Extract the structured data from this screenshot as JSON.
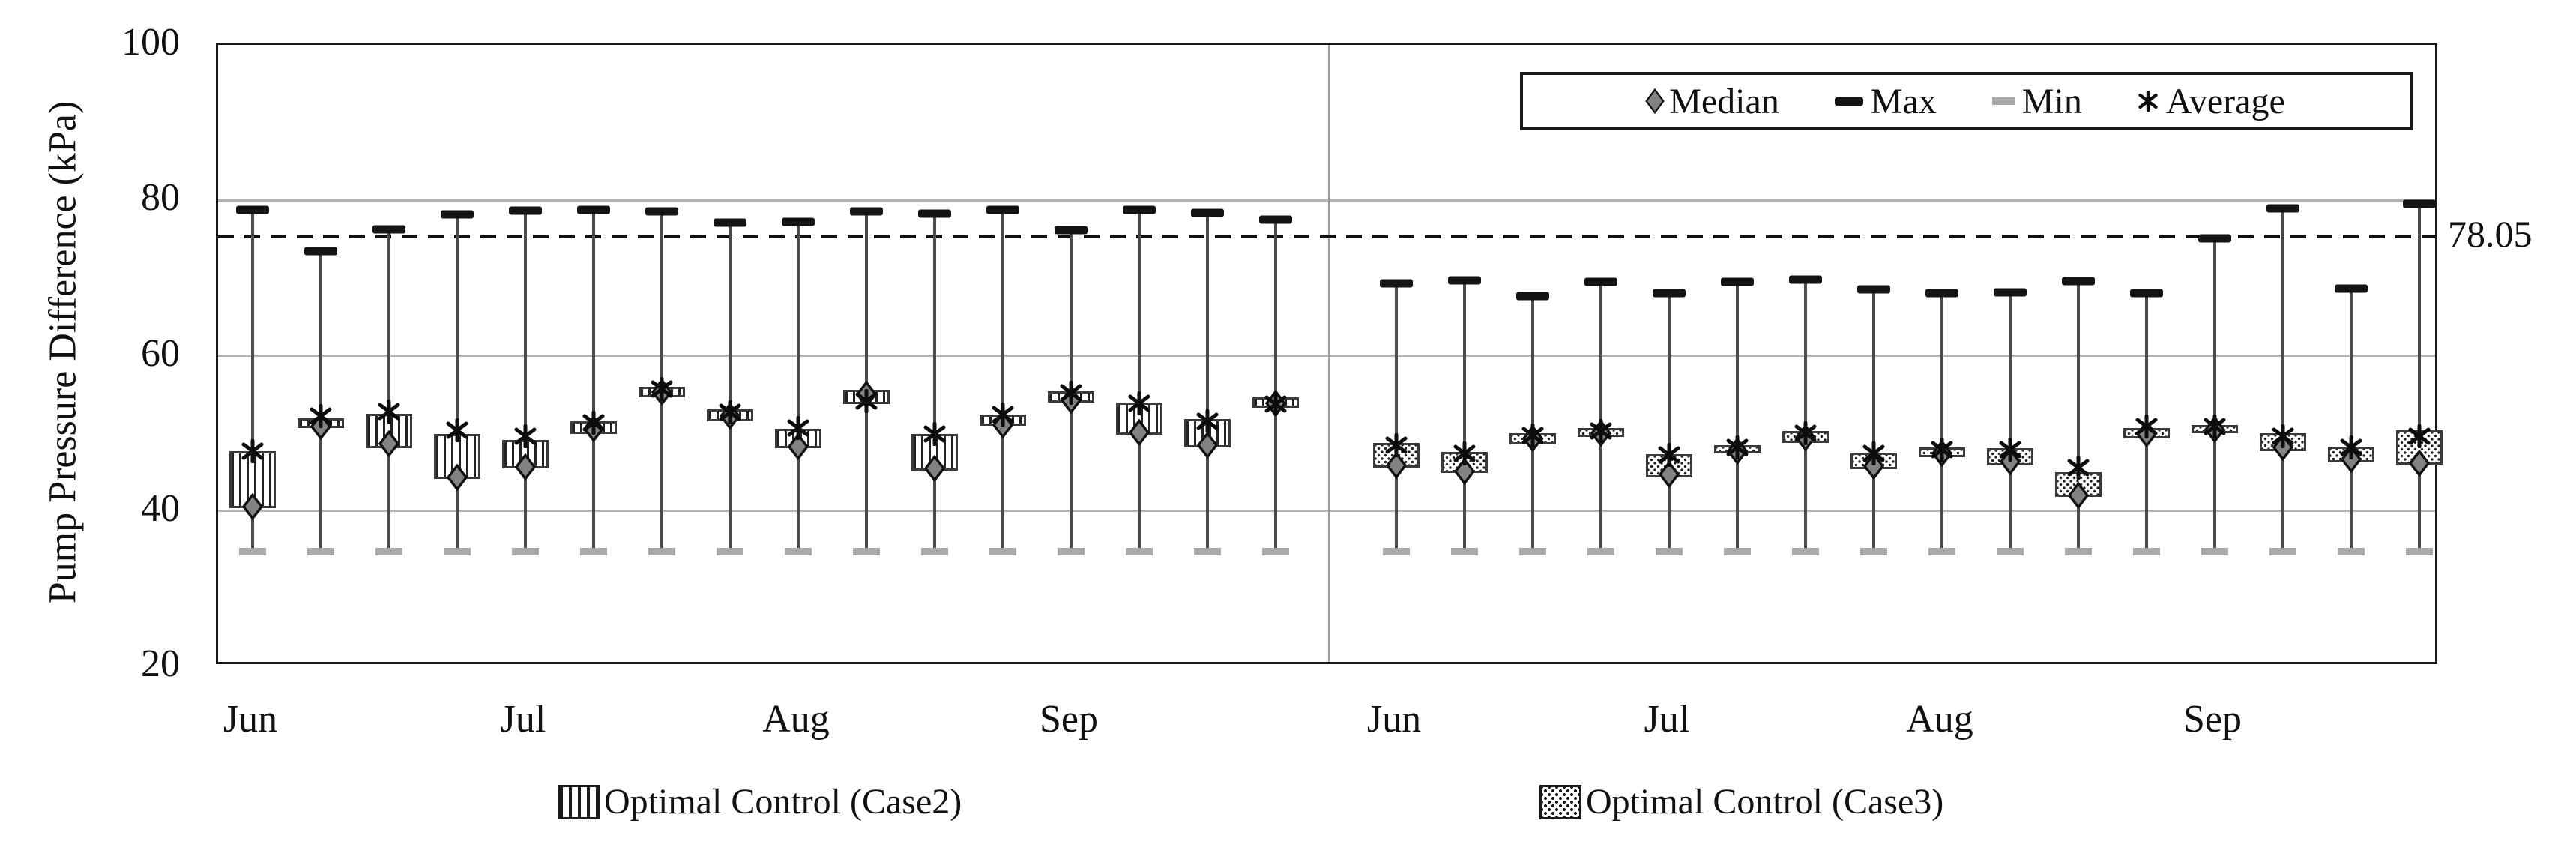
{
  "y_axis": {
    "label": "Pump Pressure Difference (kPa)",
    "min": 20,
    "max": 100,
    "tick_labels": [
      "100",
      "80",
      "60",
      "40",
      "20"
    ],
    "tick_values": [
      100,
      80,
      60,
      40,
      20
    ],
    "gridline_values": [
      40,
      60,
      80
    ]
  },
  "x_axis": {
    "month_labels": [
      "Jun",
      "Jul",
      "Aug",
      "Sep"
    ],
    "weeks_per_month": 4
  },
  "legend": {
    "items": [
      {
        "label": "Median",
        "marker": "diamond"
      },
      {
        "label": "Max",
        "marker": "black-dash"
      },
      {
        "label": "Min",
        "marker": "gray-dash"
      },
      {
        "label": "Average",
        "marker": "asterisk"
      }
    ]
  },
  "reference_line": {
    "label": "78.05",
    "value": 78.05,
    "y_axis_position": 75.35,
    "style": "dashed"
  },
  "series_legend": [
    {
      "label": "Optimal Control (Case2)",
      "pattern": "vertical-stripes"
    },
    {
      "label": "Optimal Control (Case3)",
      "pattern": "dots"
    }
  ],
  "colors": {
    "max_cap": "#141414",
    "min_cap": "#a9a9a9",
    "whisker": "#4a4a4a",
    "box_border": "#3a3a3a",
    "median_fill": "#828282",
    "grid": "#b3b3b3",
    "reference": "#111111",
    "plot_border": "#1a1a1a"
  },
  "chart_data": {
    "type": "box-whisker",
    "title": "",
    "xlabel": "",
    "ylabel": "Pump Pressure Difference (kPa)",
    "ylim": [
      20,
      100
    ],
    "grid": "horizontal",
    "legend_position": "top-right",
    "months": [
      "Jun",
      "Jul",
      "Aug",
      "Sep"
    ],
    "series": [
      {
        "name": "Optimal Control (Case2)",
        "pattern": "vertical-stripes",
        "boxes": [
          {
            "month": "Jun",
            "week": 1,
            "min": 34.8,
            "q1": 40.4,
            "median": 40.6,
            "q3": 47.7,
            "max": 78.8,
            "average": 47.7
          },
          {
            "month": "Jun",
            "week": 2,
            "min": 34.8,
            "q1": 50.7,
            "median": 50.9,
            "q3": 51.9,
            "max": 73.5,
            "average": 52.2
          },
          {
            "month": "Jun",
            "week": 3,
            "min": 34.8,
            "q1": 48.1,
            "median": 48.7,
            "q3": 52.5,
            "max": 76.3,
            "average": 52.8
          },
          {
            "month": "Jun",
            "week": 4,
            "min": 34.8,
            "q1": 44.1,
            "median": 44.3,
            "q3": 49.9,
            "max": 78.2,
            "average": 50.4
          },
          {
            "month": "Jul",
            "week": 1,
            "min": 34.8,
            "q1": 45.5,
            "median": 45.7,
            "q3": 49.1,
            "max": 78.7,
            "average": 49.6
          },
          {
            "month": "Jul",
            "week": 2,
            "min": 34.8,
            "q1": 49.9,
            "median": 50.6,
            "q3": 51.6,
            "max": 78.8,
            "average": 51.4
          },
          {
            "month": "Jul",
            "week": 3,
            "min": 34.8,
            "q1": 54.6,
            "median": 55.3,
            "q3": 56.0,
            "max": 78.6,
            "average": 55.7
          },
          {
            "month": "Jul",
            "week": 4,
            "min": 34.8,
            "q1": 51.6,
            "median": 52.2,
            "q3": 53.1,
            "max": 77.1,
            "average": 52.7
          },
          {
            "month": "Aug",
            "week": 1,
            "min": 34.8,
            "q1": 48.1,
            "median": 48.3,
            "q3": 50.6,
            "max": 77.2,
            "average": 50.7
          },
          {
            "month": "Aug",
            "week": 2,
            "min": 34.8,
            "q1": 53.8,
            "median": 55.0,
            "q3": 55.6,
            "max": 78.6,
            "average": 54.2
          },
          {
            "month": "Aug",
            "week": 3,
            "min": 34.8,
            "q1": 45.2,
            "median": 45.5,
            "q3": 49.9,
            "max": 78.3,
            "average": 49.9
          },
          {
            "month": "Aug",
            "week": 4,
            "min": 34.8,
            "q1": 51.0,
            "median": 51.1,
            "q3": 52.4,
            "max": 78.8,
            "average": 52.4
          },
          {
            "month": "Sep",
            "week": 1,
            "min": 34.8,
            "q1": 54.0,
            "median": 54.3,
            "q3": 55.4,
            "max": 76.2,
            "average": 55.2
          },
          {
            "month": "Sep",
            "week": 2,
            "min": 34.8,
            "q1": 49.8,
            "median": 50.1,
            "q3": 54.0,
            "max": 78.8,
            "average": 53.9
          },
          {
            "month": "Sep",
            "week": 3,
            "min": 34.8,
            "q1": 48.2,
            "median": 48.5,
            "q3": 51.8,
            "max": 78.4,
            "average": 51.6
          },
          {
            "month": "Sep",
            "week": 4,
            "min": 34.8,
            "q1": 53.3,
            "median": 53.9,
            "q3": 54.6,
            "max": 77.5,
            "average": 53.8
          }
        ]
      },
      {
        "name": "Optimal Control (Case3)",
        "pattern": "dots",
        "boxes": [
          {
            "month": "Jun",
            "week": 1,
            "min": 34.8,
            "q1": 45.6,
            "median": 45.9,
            "q3": 48.8,
            "max": 69.3,
            "average": 48.5
          },
          {
            "month": "Jun",
            "week": 2,
            "min": 34.8,
            "q1": 44.9,
            "median": 45.1,
            "q3": 47.6,
            "max": 69.7,
            "average": 47.4
          },
          {
            "month": "Jun",
            "week": 3,
            "min": 34.8,
            "q1": 48.6,
            "median": 49.3,
            "q3": 50.0,
            "max": 67.7,
            "average": 49.7
          },
          {
            "month": "Jun",
            "week": 4,
            "min": 34.8,
            "q1": 49.5,
            "median": 50.0,
            "q3": 50.7,
            "max": 69.5,
            "average": 50.3
          },
          {
            "month": "Jul",
            "week": 1,
            "min": 34.8,
            "q1": 44.3,
            "median": 44.7,
            "q3": 47.3,
            "max": 68.1,
            "average": 47.2
          },
          {
            "month": "Jul",
            "week": 2,
            "min": 34.8,
            "q1": 47.4,
            "median": 47.7,
            "q3": 48.5,
            "max": 69.5,
            "average": 48.2
          },
          {
            "month": "Jul",
            "week": 3,
            "min": 34.8,
            "q1": 48.8,
            "median": 49.4,
            "q3": 50.3,
            "max": 69.8,
            "average": 50.0
          },
          {
            "month": "Jul",
            "week": 4,
            "min": 34.8,
            "q1": 45.4,
            "median": 45.8,
            "q3": 47.5,
            "max": 68.5,
            "average": 47.4
          },
          {
            "month": "Aug",
            "week": 1,
            "min": 34.8,
            "q1": 46.9,
            "median": 47.4,
            "q3": 48.2,
            "max": 68.1,
            "average": 47.9
          },
          {
            "month": "Aug",
            "week": 2,
            "min": 34.8,
            "q1": 45.9,
            "median": 46.3,
            "q3": 48.1,
            "max": 68.2,
            "average": 47.9
          },
          {
            "month": "Aug",
            "week": 3,
            "min": 34.8,
            "q1": 41.8,
            "median": 42.0,
            "q3": 45.0,
            "max": 69.6,
            "average": 45.6
          },
          {
            "month": "Aug",
            "week": 4,
            "min": 34.8,
            "q1": 49.3,
            "median": 49.9,
            "q3": 50.7,
            "max": 68.1,
            "average": 50.9
          },
          {
            "month": "Sep",
            "week": 1,
            "min": 34.8,
            "q1": 50.0,
            "median": 50.5,
            "q3": 51.1,
            "max": 75.1,
            "average": 50.9
          },
          {
            "month": "Sep",
            "week": 2,
            "min": 34.8,
            "q1": 47.7,
            "median": 48.2,
            "q3": 50.0,
            "max": 79.0,
            "average": 49.6
          },
          {
            "month": "Sep",
            "week": 3,
            "min": 34.8,
            "q1": 46.2,
            "median": 46.6,
            "q3": 48.3,
            "max": 68.6,
            "average": 48.2
          },
          {
            "month": "Sep",
            "week": 4,
            "min": 34.8,
            "q1": 46.0,
            "median": 46.2,
            "q3": 50.4,
            "max": 79.5,
            "average": 49.6
          }
        ]
      }
    ],
    "reference_line": {
      "label": "78.05",
      "value": 78.05,
      "y_axis_position": 75.35
    }
  }
}
